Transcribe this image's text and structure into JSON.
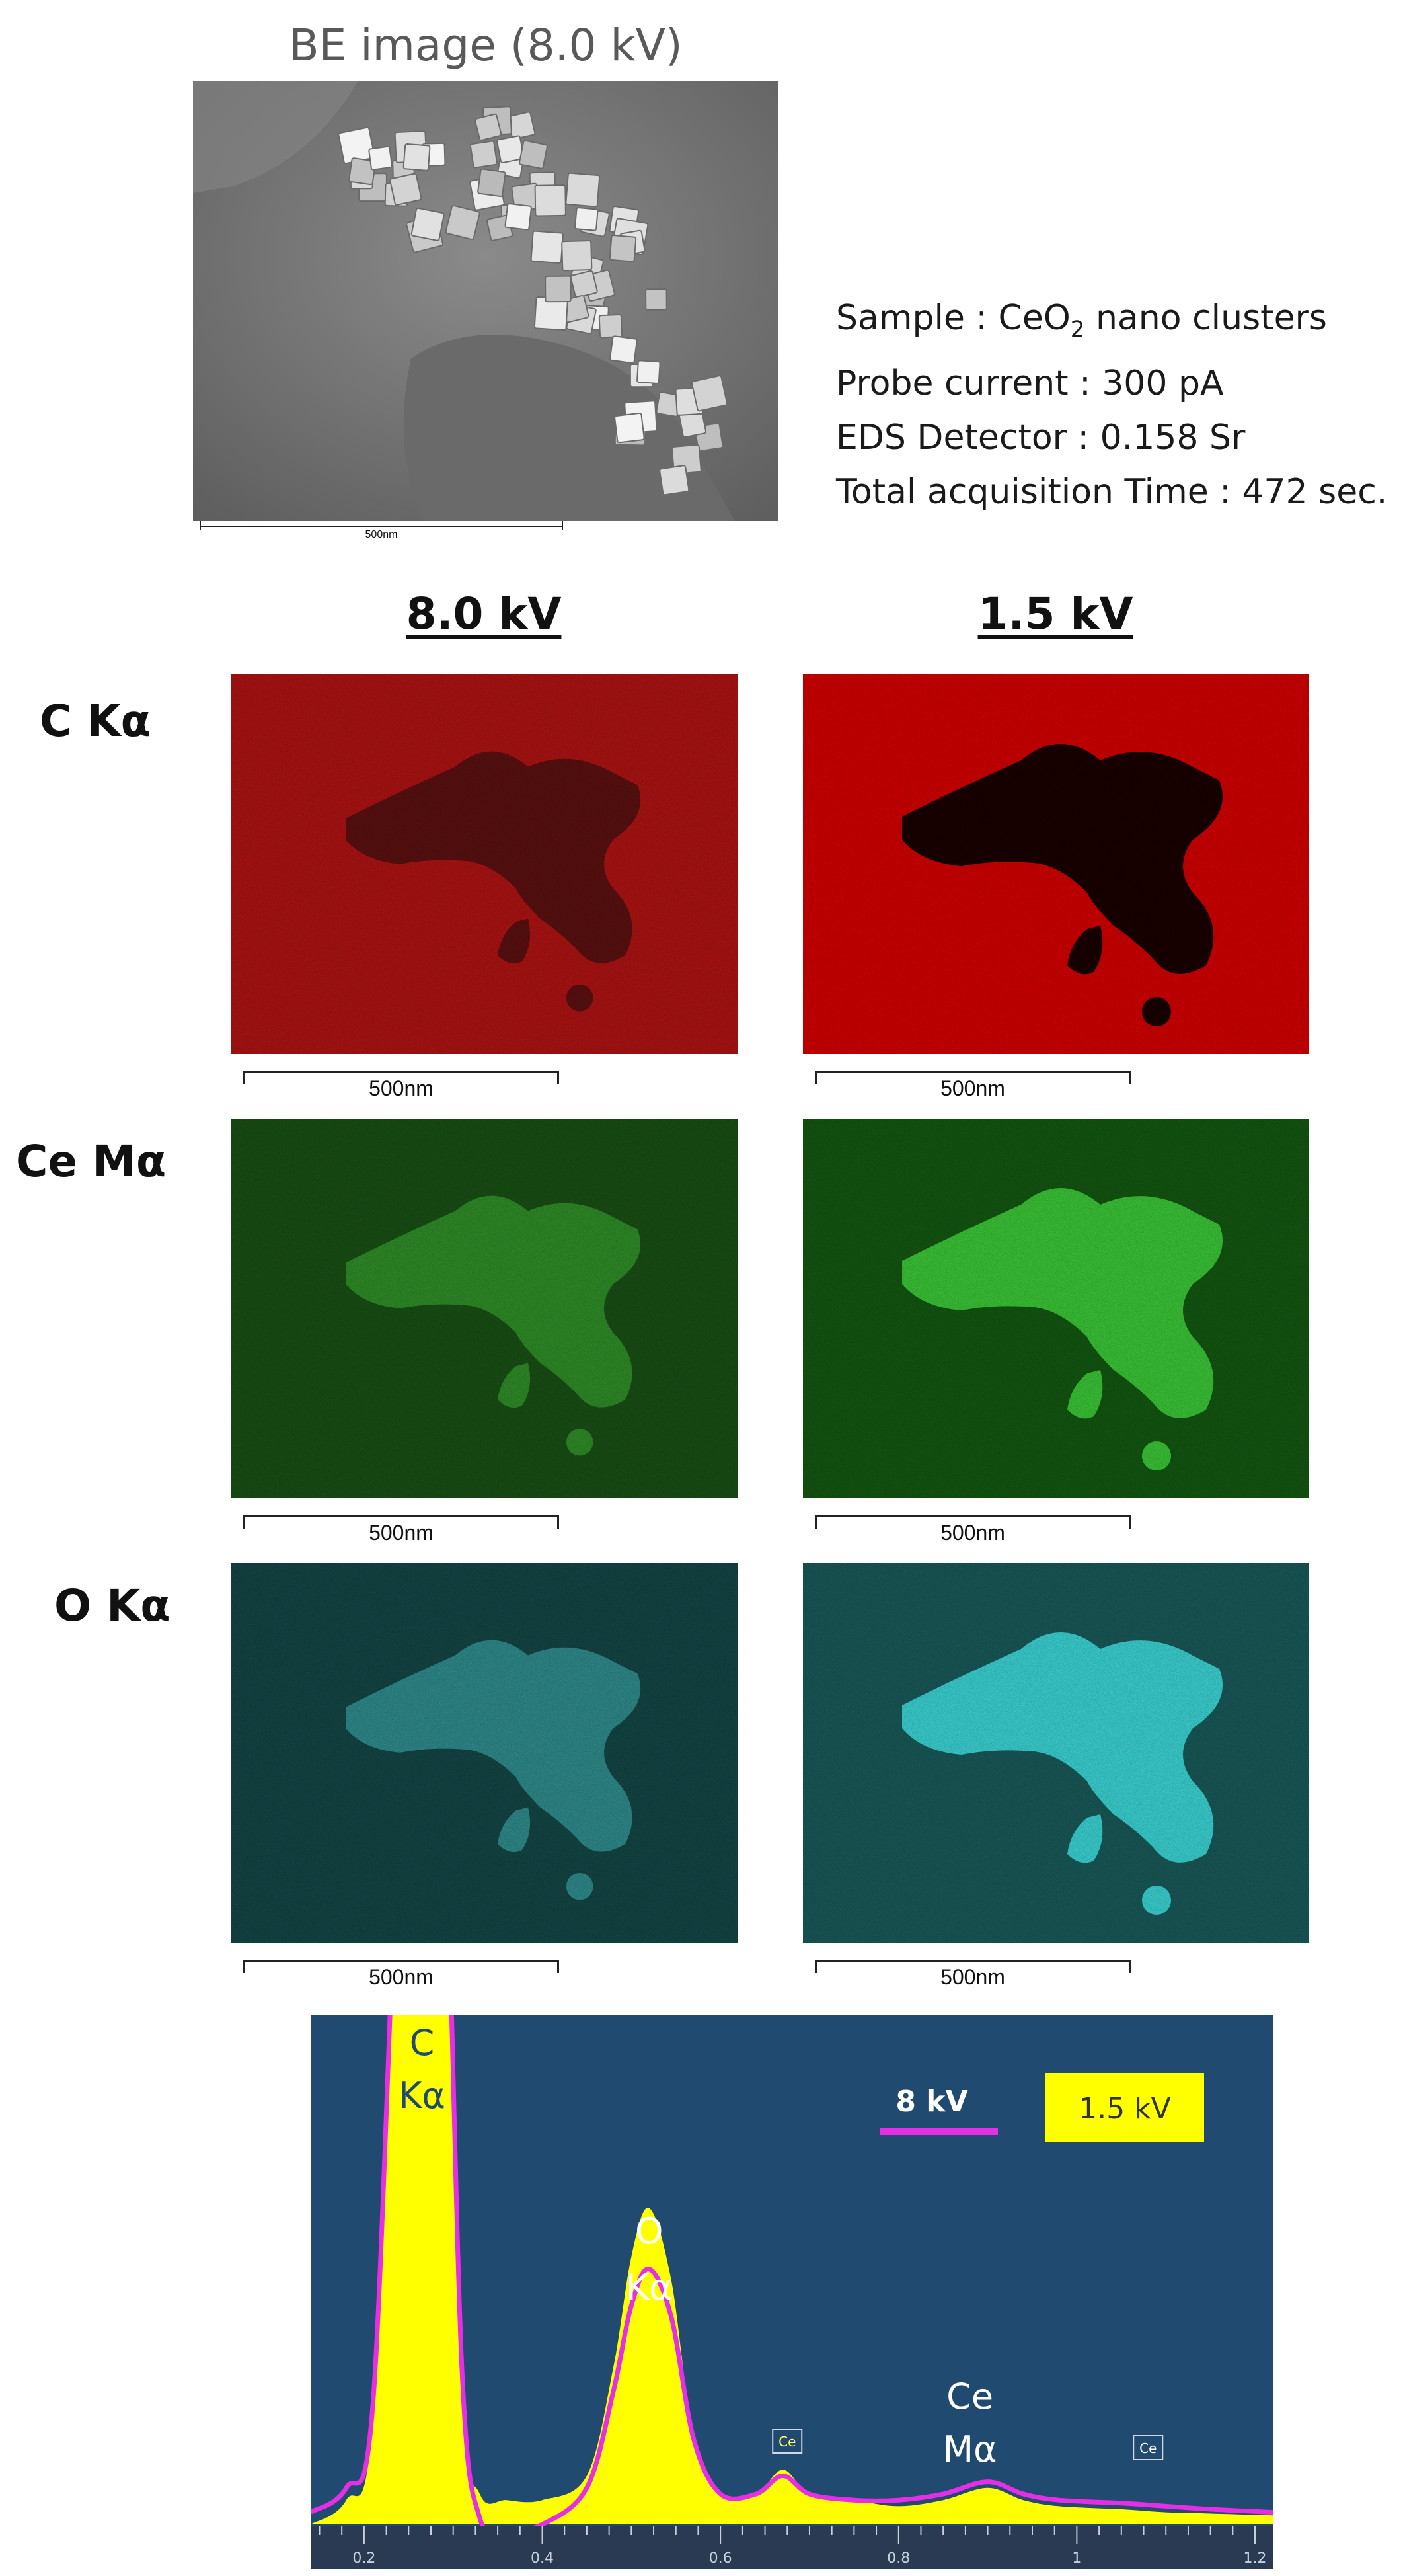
{
  "be_image": {
    "title": "BE image (8.0 kV)",
    "scale_label": "500nm"
  },
  "info": {
    "sample_prefix": "Sample : CeO",
    "sample_sub": "2",
    "sample_suffix": " nano clusters",
    "probe_current": "Probe current : 300 pA",
    "detector": "EDS Detector : 0.158 Sr",
    "acquisition": "Total acquisition Time : 472 sec."
  },
  "maps": {
    "columns": [
      "8.0 kV",
      "1.5 kV"
    ],
    "rows": [
      {
        "label": "C Kα",
        "color_8kv": "#b81414",
        "color_1_5kv": "#e00000",
        "cluster_8kv": "#4a1010",
        "cluster_1_5kv": "#1a0000"
      },
      {
        "label": "Ce Mα",
        "color_8kv": "#1a5416",
        "color_1_5kv": "#145c12",
        "cluster_8kv": "#37a52e",
        "cluster_1_5kv": "#3ed23a"
      },
      {
        "label": "O Kα",
        "color_8kv": "#154a4a",
        "color_1_5kv": "#1a5e5e",
        "cluster_8kv": "#3aa6a6",
        "cluster_1_5kv": "#3ee0e0"
      }
    ],
    "scale_label": "500nm"
  },
  "chart_data": {
    "type": "line",
    "x_ticks": [
      "0.2",
      "0.4",
      "0.6",
      "0.8",
      "1",
      "1.2"
    ],
    "xlim": [
      0.14,
      1.22
    ],
    "legend": [
      "8 kV",
      "1.5 kV"
    ],
    "legend_placement": "top-right",
    "series": [
      {
        "name": "8 kV",
        "color": "#e62ee6",
        "x": [
          0.14,
          0.18,
          0.21,
          0.24,
          0.265,
          0.29,
          0.31,
          0.33,
          0.36,
          0.4,
          0.45,
          0.48,
          0.5,
          0.52,
          0.545,
          0.57,
          0.6,
          0.64,
          0.67,
          0.7,
          0.75,
          0.8,
          0.85,
          0.9,
          0.94,
          0.98,
          1.05,
          1.1,
          1.15,
          1.22
        ],
        "y": [
          0.02,
          0.06,
          0.2,
          1.2,
          1.5,
          1.2,
          0.25,
          0.01,
          -0.01,
          0.0,
          0.06,
          0.22,
          0.36,
          0.42,
          0.34,
          0.14,
          0.05,
          0.05,
          0.08,
          0.05,
          0.04,
          0.04,
          0.05,
          0.07,
          0.05,
          0.04,
          0.035,
          0.03,
          0.025,
          0.02
        ]
      },
      {
        "name": "1.5 kV",
        "color": "#ffff00",
        "x": [
          0.14,
          0.18,
          0.21,
          0.24,
          0.265,
          0.29,
          0.31,
          0.33,
          0.36,
          0.4,
          0.45,
          0.48,
          0.5,
          0.52,
          0.545,
          0.57,
          0.6,
          0.64,
          0.67,
          0.7,
          0.75,
          0.8,
          0.85,
          0.9,
          0.94,
          0.98,
          1.05,
          1.1,
          1.15,
          1.22
        ],
        "y": [
          0.0,
          0.04,
          0.18,
          1.2,
          1.5,
          1.2,
          0.22,
          0.05,
          0.04,
          0.04,
          0.08,
          0.26,
          0.44,
          0.52,
          0.4,
          0.14,
          0.05,
          0.05,
          0.09,
          0.05,
          0.04,
          0.03,
          0.04,
          0.06,
          0.04,
          0.03,
          0.025,
          0.02,
          0.018,
          0.015
        ]
      }
    ],
    "peak_labels": [
      {
        "line1": "C",
        "line2": "Kα",
        "x": 0.265
      },
      {
        "line1": "O",
        "line2": "Kα",
        "x": 0.52
      },
      {
        "line1": "Ce",
        "line2": "Mα",
        "x": 0.88
      }
    ],
    "element_markers": [
      {
        "label": "Ce",
        "x": 0.675
      },
      {
        "label": "Ce",
        "x": 1.08
      }
    ]
  }
}
